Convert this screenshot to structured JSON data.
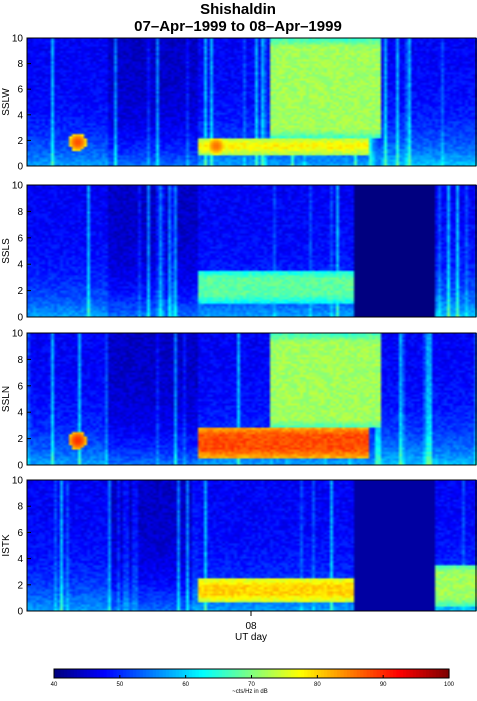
{
  "figure": {
    "title": "Shishaldin",
    "subtitle": "07–Apr–1999 to 08–Apr–1999",
    "xlabel": "UT day",
    "x_tick_label": "08",
    "colorbar_label": "~cts/Hz in dB"
  },
  "chart_data": [
    {
      "type": "heatmap",
      "ylabel": "SSLW",
      "ylim": [
        0,
        10
      ],
      "yticks": [
        0,
        2,
        4,
        6,
        8,
        10
      ],
      "xlim": [
        0,
        1
      ],
      "features": [
        {
          "kind": "band",
          "x0": 0.38,
          "x1": 0.76,
          "y0": 0.8,
          "y1": 2.2,
          "level": 78
        },
        {
          "kind": "band",
          "x0": 0.54,
          "x1": 0.79,
          "y0": 2.2,
          "y1": 10,
          "level": 72
        },
        {
          "kind": "blob",
          "x": 0.11,
          "y": 1.8,
          "level": 88
        },
        {
          "kind": "blob",
          "x": 0.42,
          "y": 1.5,
          "level": 86
        }
      ]
    },
    {
      "type": "heatmap",
      "ylabel": "SSLS",
      "ylim": [
        0,
        10
      ],
      "yticks": [
        0,
        2,
        4,
        6,
        8,
        10
      ],
      "xlim": [
        0,
        1
      ],
      "features": [
        {
          "kind": "band",
          "x0": 0.38,
          "x1": 0.73,
          "y0": 1.0,
          "y1": 3.5,
          "level": 68
        },
        {
          "kind": "gap",
          "x0": 0.73,
          "x1": 0.91,
          "level": 40
        }
      ]
    },
    {
      "type": "heatmap",
      "ylabel": "SSLN",
      "ylim": [
        0,
        10
      ],
      "yticks": [
        0,
        2,
        4,
        6,
        8,
        10
      ],
      "xlim": [
        0,
        1
      ],
      "features": [
        {
          "kind": "band",
          "x0": 0.38,
          "x1": 0.76,
          "y0": 0.5,
          "y1": 2.8,
          "level": 88
        },
        {
          "kind": "band",
          "x0": 0.54,
          "x1": 0.79,
          "y0": 2.8,
          "y1": 10,
          "level": 72
        },
        {
          "kind": "blob",
          "x": 0.11,
          "y": 1.8,
          "level": 90
        }
      ]
    },
    {
      "type": "heatmap",
      "ylabel": "ISTK",
      "ylim": [
        0,
        10
      ],
      "yticks": [
        0,
        2,
        4,
        6,
        8,
        10
      ],
      "xlim": [
        0,
        1
      ],
      "features": [
        {
          "kind": "band",
          "x0": 0.38,
          "x1": 0.73,
          "y0": 0.6,
          "y1": 2.5,
          "level": 80
        },
        {
          "kind": "gap",
          "x0": 0.73,
          "x1": 0.91,
          "level": 42
        },
        {
          "kind": "band",
          "x0": 0.91,
          "x1": 1.0,
          "y0": 0.3,
          "y1": 3.5,
          "level": 72
        }
      ]
    }
  ],
  "colorbar": {
    "ticks": [
      "40",
      "50",
      "60",
      "70",
      "80",
      "90",
      "100"
    ],
    "range": [
      40,
      100
    ]
  }
}
